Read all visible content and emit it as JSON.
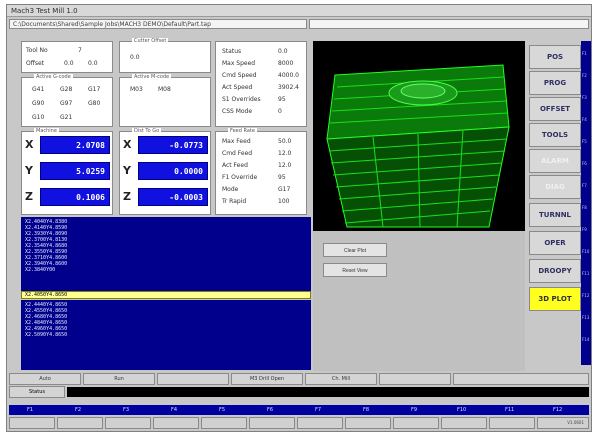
{
  "window": {
    "title": "Mach3 Test Mill 1.0",
    "path": "C:\\Documents\\Shared\\Sample Jobs\\MACH3 DEMO\\Default\\Part.tap"
  },
  "boxes": {
    "tool": {
      "rows": [
        [
          "Tool No",
          "7"
        ],
        [
          "Offset",
          "0.0",
          "0.0"
        ]
      ]
    },
    "feed_info": {
      "caption": "Cutter Offset",
      "rows": [
        [
          "0.0"
        ]
      ]
    },
    "g_codes": {
      "caption": "Active G-code",
      "rows": [
        [
          "G41",
          "G28",
          "G17"
        ],
        [
          "G90",
          "G97",
          "G80"
        ],
        [
          "G10",
          "G21"
        ]
      ]
    },
    "m_codes": {
      "caption": "Active M-code",
      "rows": [
        [
          "M03",
          "M08"
        ]
      ]
    },
    "status": {
      "caption": "Status",
      "rows": [
        [
          "Status",
          "0.0"
        ],
        [
          "Max Speed",
          "8000"
        ],
        [
          "Cmd Speed",
          "4000.0"
        ],
        [
          "Act Speed",
          "3902.4"
        ],
        [
          "S1 Overrides",
          "95"
        ],
        [
          "CSS Mode",
          "0"
        ]
      ]
    },
    "feeds": {
      "caption": "Feed Rate",
      "rows": [
        [
          "Max Feed",
          "50.0"
        ],
        [
          "Cmd Feed",
          "12.0"
        ],
        [
          "Act Feed",
          "12.0"
        ],
        [
          "F1 Override",
          "95"
        ],
        [
          "Mode",
          "G17"
        ],
        [
          "Tr Rapid",
          "100"
        ]
      ]
    }
  },
  "coords_left": [
    {
      "axis": "X",
      "value": "2.0708"
    },
    {
      "axis": "Y",
      "value": "5.0259"
    },
    {
      "axis": "Z",
      "value": "0.1006"
    }
  ],
  "coords_right": [
    {
      "axis": "X",
      "value": "-0.0773"
    },
    {
      "axis": "Y",
      "value": "0.0000"
    },
    {
      "axis": "Z",
      "value": "-0.0003"
    }
  ],
  "coords_captions": {
    "left": "Machine",
    "right": "Dist To Go"
  },
  "gcode_above": [
    "X2.4040Y4.8380",
    "X2.4140Y4.8590",
    "X2.3930Y4.8090",
    "X2.3700Y4.8130",
    "X2.3540Y4.8680",
    "X2.3550Y4.8590",
    "X2.3710Y4.8600",
    "X2.3940Y4.8600",
    "X2.3840Y00"
  ],
  "current_line": "X2.4050Y4.8650",
  "gcode_below": [
    "X2.4440Y4.8650",
    "X2.4550Y4.8650",
    "X2.4680Y4.8650",
    "X2.4840Y4.8650",
    "X2.4960Y4.8650",
    "X2.5090Y4.8650"
  ],
  "plot_buttons": [
    "Clear Plot",
    "Reset View"
  ],
  "side_buttons": [
    {
      "label": "POS",
      "state": "normal"
    },
    {
      "label": "PROG",
      "state": "normal"
    },
    {
      "label": "OFFSET",
      "state": "normal"
    },
    {
      "label": "TOOLS",
      "state": "normal"
    },
    {
      "label": "ALARM",
      "state": "dim"
    },
    {
      "label": "DIAG",
      "state": "dim"
    },
    {
      "label": "TURNNL",
      "state": "normal"
    },
    {
      "label": "OPER",
      "state": "normal"
    },
    {
      "label": "DROOPY",
      "state": "normal"
    },
    {
      "label": "3D PLOT",
      "state": "active"
    }
  ],
  "side_strip": [
    "F1",
    "F2",
    "F3",
    "F4",
    "F5",
    "F6",
    "F7",
    "F8",
    "F9",
    "F10",
    "F11",
    "F12",
    "F13",
    "F14"
  ],
  "status_row": [
    "Auto",
    "Run",
    "",
    "M3 Drill Open",
    "Ch. Mill",
    "",
    ""
  ],
  "message_label": "Status",
  "fkeys": [
    "F1",
    "F2",
    "F3",
    "F4",
    "F5",
    "F6",
    "F7",
    "F8",
    "F9",
    "F10",
    "F11",
    "F12"
  ],
  "version": "V1.0601"
}
